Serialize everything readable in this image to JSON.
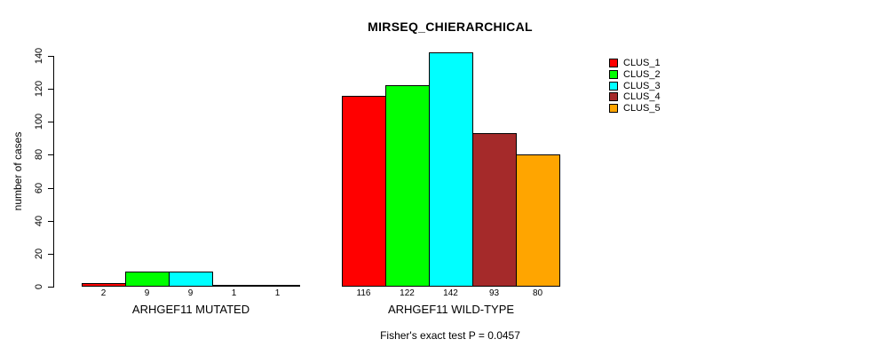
{
  "chart_data": {
    "type": "bar",
    "title": "MIRSEQ_CHIERARCHICAL",
    "ylabel": "number of cases",
    "xlabel": "",
    "ylim": [
      0,
      140
    ],
    "yticks": [
      0,
      20,
      40,
      60,
      80,
      100,
      120,
      140
    ],
    "grid": false,
    "legend_position": "right",
    "bar_value_labels": true,
    "series_names": [
      "CLUS_1",
      "CLUS_2",
      "CLUS_3",
      "CLUS_4",
      "CLUS_5"
    ],
    "series_colors": [
      "#FF0000",
      "#00FF00",
      "#00FFFF",
      "#A52A2A",
      "#FFA500"
    ],
    "groups": [
      {
        "label": "ARHGEF11 MUTATED",
        "values": [
          2,
          9,
          9,
          1,
          1
        ]
      },
      {
        "label": "ARHGEF11 WILD-TYPE",
        "values": [
          116,
          122,
          142,
          93,
          80
        ]
      }
    ],
    "annotation": "Fisher's exact test P = 0.0457"
  }
}
